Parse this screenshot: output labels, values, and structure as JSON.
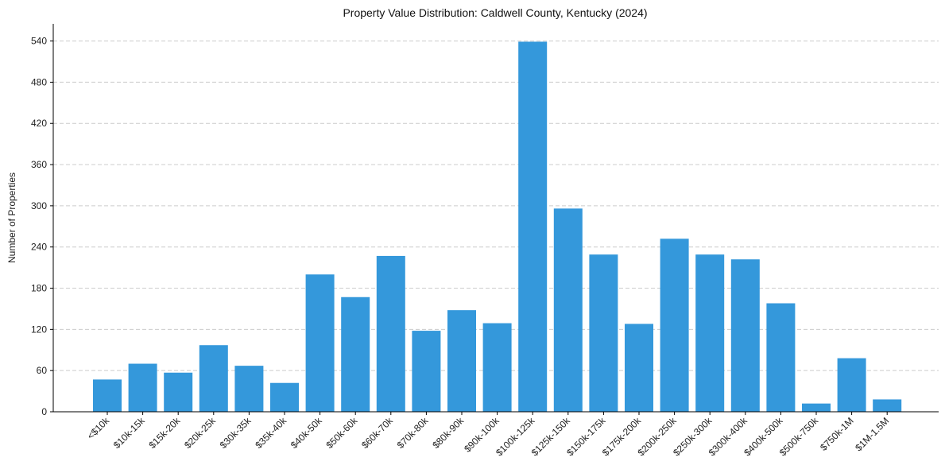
{
  "chart_data": {
    "type": "bar",
    "title": "Property Value Distribution: Caldwell County, Kentucky (2024)",
    "xlabel": "",
    "ylabel": "Number of Properties",
    "categories": [
      "<$10k",
      "$10k-15k",
      "$15k-20k",
      "$20k-25k",
      "$30k-35k",
      "$35k-40k",
      "$40k-50k",
      "$50k-60k",
      "$60k-70k",
      "$70k-80k",
      "$80k-90k",
      "$90k-100k",
      "$100k-125k",
      "$125k-150k",
      "$150k-175k",
      "$175k-200k",
      "$200k-250k",
      "$250k-300k",
      "$300k-400k",
      "$400k-500k",
      "$500k-750k",
      "$750k-1M",
      "$1M-1.5M"
    ],
    "values": [
      47,
      70,
      57,
      97,
      67,
      42,
      200,
      167,
      227,
      118,
      148,
      129,
      539,
      296,
      229,
      128,
      252,
      229,
      222,
      158,
      12,
      78,
      18
    ],
    "yticks": [
      0,
      60,
      120,
      180,
      240,
      300,
      360,
      420,
      480,
      540
    ],
    "ylim": [
      0,
      565
    ],
    "grid": "horizontal-dashed",
    "bar_color": "#3498db",
    "grid_color": "#cccccc",
    "axis_color": "#000000"
  }
}
